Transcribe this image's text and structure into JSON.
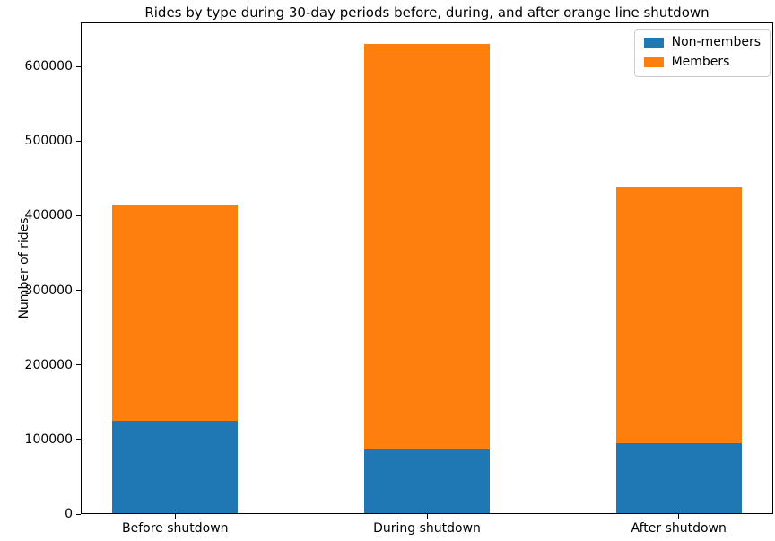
{
  "chart_data": {
    "type": "bar",
    "stacked": true,
    "title": "Rides by type during 30-day periods before, during, and after orange line shutdown",
    "xlabel": "",
    "ylabel": "Number of rides",
    "categories": [
      "Before shutdown",
      "During shutdown",
      "After shutdown"
    ],
    "series": [
      {
        "name": "Non-members",
        "color": "#1f77b4",
        "values": [
          125000,
          87000,
          95000
        ]
      },
      {
        "name": "Members",
        "color": "#ff7f0e",
        "values": [
          290000,
          543000,
          344000
        ]
      }
    ],
    "yticks": [
      0,
      100000,
      200000,
      300000,
      400000,
      500000,
      600000
    ],
    "ylim": [
      0,
      659000
    ],
    "xlim": [
      -0.375,
      2.375
    ],
    "bar_width": 0.5,
    "grid": false,
    "legend": {
      "position": "upper right",
      "entries": [
        "Non-members",
        "Members"
      ]
    }
  }
}
